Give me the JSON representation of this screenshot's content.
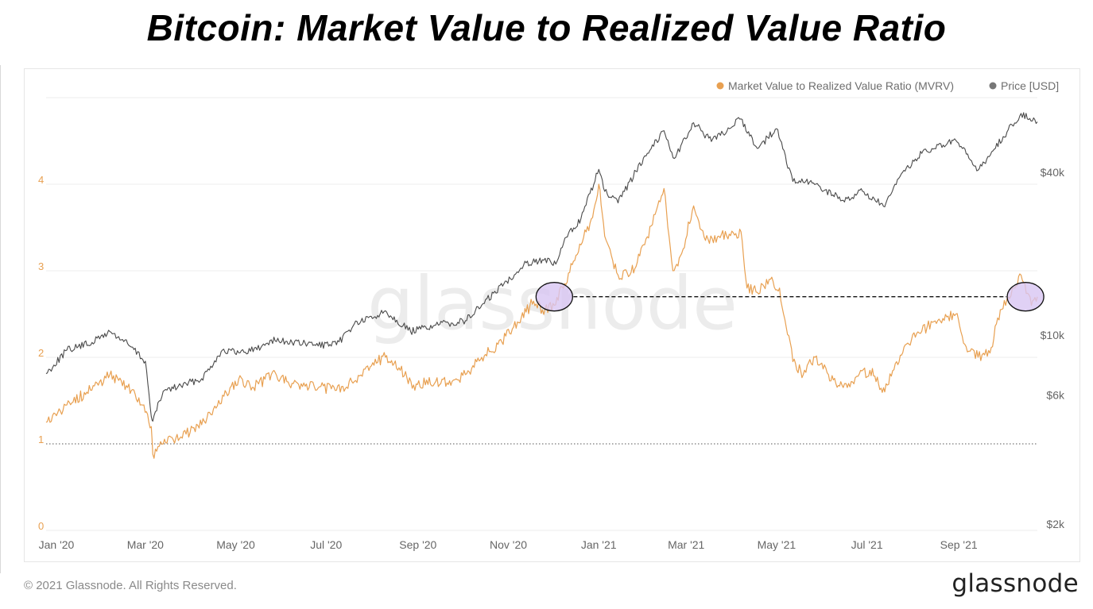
{
  "page": {
    "title": "Bitcoin: Market Value to Realized Value Ratio",
    "copyright": "© 2021 Glassnode. All Rights Reserved.",
    "brand": "glassnode",
    "watermark": "glassnode"
  },
  "chart_data": {
    "type": "line",
    "legend_position": "top-right",
    "grid": true,
    "x_tick_labels": [
      "Jan '20",
      "Mar '20",
      "May '20",
      "Jul '20",
      "Sep '20",
      "Nov '20",
      "Jan '21",
      "Mar '21",
      "May '21",
      "Jul '21",
      "Sep '21"
    ],
    "y_left": {
      "ticks": [
        "0",
        "1",
        "2",
        "3",
        "4"
      ],
      "range": [
        0,
        5
      ],
      "color": "#e8a051"
    },
    "y_right": {
      "scale": "log",
      "ticks": [
        "$2k",
        "$6k",
        "$10k",
        "$40k"
      ],
      "range": [
        2000,
        100000
      ],
      "color": "#666666"
    },
    "reference_line": {
      "value": 1,
      "axis": "left",
      "style": "dotted"
    },
    "annotation": {
      "type": "dashed-level",
      "value": 2.7,
      "axis": "left",
      "from": "2020-12-09",
      "to": "2021-10-23",
      "circles": [
        "2020-12-09",
        "2021-10-23"
      ],
      "circle_color": "#d8c6f2"
    },
    "series": [
      {
        "name": "Market Value to Realized Value Ratio (MVRV)",
        "axis": "left",
        "color": "#e8a051",
        "points": [
          [
            "2020-01-01",
            1.25
          ],
          [
            "2020-01-15",
            1.45
          ],
          [
            "2020-01-31",
            1.62
          ],
          [
            "2020-02-13",
            1.8
          ],
          [
            "2020-02-25",
            1.65
          ],
          [
            "2020-03-07",
            1.45
          ],
          [
            "2020-03-12",
            1.2
          ],
          [
            "2020-03-13",
            0.88
          ],
          [
            "2020-03-20",
            1.0
          ],
          [
            "2020-04-01",
            1.08
          ],
          [
            "2020-04-15",
            1.22
          ],
          [
            "2020-04-30",
            1.55
          ],
          [
            "2020-05-10",
            1.75
          ],
          [
            "2020-05-20",
            1.65
          ],
          [
            "2020-06-01",
            1.8
          ],
          [
            "2020-06-15",
            1.7
          ],
          [
            "2020-06-30",
            1.66
          ],
          [
            "2020-07-15",
            1.62
          ],
          [
            "2020-07-27",
            1.72
          ],
          [
            "2020-08-05",
            1.9
          ],
          [
            "2020-08-17",
            2.0
          ],
          [
            "2020-08-27",
            1.85
          ],
          [
            "2020-09-05",
            1.68
          ],
          [
            "2020-09-20",
            1.72
          ],
          [
            "2020-10-01",
            1.72
          ],
          [
            "2020-10-10",
            1.8
          ],
          [
            "2020-10-21",
            2.0
          ],
          [
            "2020-11-01",
            2.15
          ],
          [
            "2020-11-15",
            2.4
          ],
          [
            "2020-11-25",
            2.65
          ],
          [
            "2020-12-01",
            2.55
          ],
          [
            "2020-12-09",
            2.6
          ],
          [
            "2020-12-16",
            2.85
          ],
          [
            "2020-12-27",
            3.3
          ],
          [
            "2021-01-03",
            3.6
          ],
          [
            "2021-01-08",
            4.0
          ],
          [
            "2021-01-12",
            3.4
          ],
          [
            "2021-01-21",
            2.95
          ],
          [
            "2021-01-29",
            2.95
          ],
          [
            "2021-02-08",
            3.3
          ],
          [
            "2021-02-15",
            3.65
          ],
          [
            "2021-02-21",
            3.95
          ],
          [
            "2021-02-27",
            3.0
          ],
          [
            "2021-03-05",
            3.2
          ],
          [
            "2021-03-13",
            3.75
          ],
          [
            "2021-03-21",
            3.35
          ],
          [
            "2021-03-30",
            3.4
          ],
          [
            "2021-04-14",
            3.45
          ],
          [
            "2021-04-18",
            2.8
          ],
          [
            "2021-04-25",
            2.75
          ],
          [
            "2021-05-03",
            2.9
          ],
          [
            "2021-05-10",
            2.8
          ],
          [
            "2021-05-19",
            1.95
          ],
          [
            "2021-05-26",
            1.8
          ],
          [
            "2021-06-03",
            2.0
          ],
          [
            "2021-06-12",
            1.8
          ],
          [
            "2021-06-22",
            1.65
          ],
          [
            "2021-07-01",
            1.78
          ],
          [
            "2021-07-10",
            1.85
          ],
          [
            "2021-07-20",
            1.6
          ],
          [
            "2021-07-28",
            1.95
          ],
          [
            "2021-08-07",
            2.2
          ],
          [
            "2021-08-14",
            2.3
          ],
          [
            "2021-08-23",
            2.42
          ],
          [
            "2021-09-06",
            2.5
          ],
          [
            "2021-09-12",
            2.15
          ],
          [
            "2021-09-21",
            2.0
          ],
          [
            "2021-09-29",
            2.05
          ],
          [
            "2021-10-06",
            2.55
          ],
          [
            "2021-10-15",
            2.8
          ],
          [
            "2021-10-20",
            2.95
          ],
          [
            "2021-10-27",
            2.6
          ],
          [
            "2021-10-31",
            2.7
          ]
        ]
      },
      {
        "name": "Price [USD]",
        "axis": "right",
        "color": "#666666",
        "points": [
          [
            "2020-01-01",
            7200
          ],
          [
            "2020-01-15",
            8800
          ],
          [
            "2020-02-01",
            9400
          ],
          [
            "2020-02-13",
            10300
          ],
          [
            "2020-02-25",
            9300
          ],
          [
            "2020-03-08",
            8000
          ],
          [
            "2020-03-12",
            5000
          ],
          [
            "2020-03-13",
            4800
          ],
          [
            "2020-03-20",
            6200
          ],
          [
            "2020-04-01",
            6500
          ],
          [
            "2020-04-15",
            6900
          ],
          [
            "2020-04-29",
            8800
          ],
          [
            "2020-05-10",
            8600
          ],
          [
            "2020-05-25",
            9000
          ],
          [
            "2020-06-01",
            9600
          ],
          [
            "2020-06-15",
            9400
          ],
          [
            "2020-06-30",
            9200
          ],
          [
            "2020-07-15",
            9200
          ],
          [
            "2020-07-27",
            11000
          ],
          [
            "2020-08-10",
            11700
          ],
          [
            "2020-08-17",
            12300
          ],
          [
            "2020-09-03",
            10300
          ],
          [
            "2020-09-20",
            10900
          ],
          [
            "2020-10-10",
            11300
          ],
          [
            "2020-10-21",
            12900
          ],
          [
            "2020-11-05",
            15500
          ],
          [
            "2020-11-20",
            18500
          ],
          [
            "2020-12-01",
            19000
          ],
          [
            "2020-12-10",
            18300
          ],
          [
            "2020-12-17",
            23000
          ],
          [
            "2020-12-27",
            27000
          ],
          [
            "2021-01-08",
            41000
          ],
          [
            "2021-01-12",
            34000
          ],
          [
            "2021-01-21",
            30800
          ],
          [
            "2021-02-08",
            46000
          ],
          [
            "2021-02-21",
            57000
          ],
          [
            "2021-02-28",
            45000
          ],
          [
            "2021-03-13",
            61000
          ],
          [
            "2021-03-25",
            52000
          ],
          [
            "2021-04-14",
            63000
          ],
          [
            "2021-04-25",
            49000
          ],
          [
            "2021-05-08",
            58000
          ],
          [
            "2021-05-19",
            37000
          ],
          [
            "2021-06-01",
            36500
          ],
          [
            "2021-06-22",
            31500
          ],
          [
            "2021-07-05",
            34000
          ],
          [
            "2021-07-20",
            29800
          ],
          [
            "2021-08-01",
            40000
          ],
          [
            "2021-08-14",
            47000
          ],
          [
            "2021-09-06",
            52500
          ],
          [
            "2021-09-21",
            40700
          ],
          [
            "2021-10-01",
            48000
          ],
          [
            "2021-10-20",
            66000
          ],
          [
            "2021-10-31",
            61500
          ]
        ]
      }
    ]
  }
}
